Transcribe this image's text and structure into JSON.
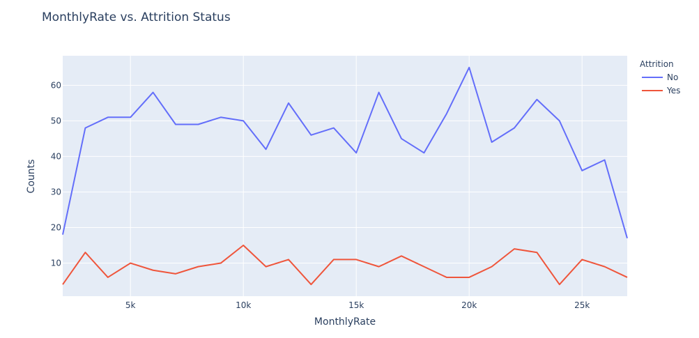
{
  "chart_data": {
    "type": "line",
    "title": "MonthlyRate vs. Attrition Status",
    "xlabel": "MonthlyRate",
    "ylabel": "Counts",
    "xlim": [
      2000,
      27000
    ],
    "ylim": [
      0.7,
      68.3
    ],
    "x_ticks": [
      5000,
      10000,
      15000,
      20000,
      25000
    ],
    "x_tick_labels": [
      "5k",
      "10k",
      "15k",
      "20k",
      "25k"
    ],
    "y_ticks": [
      10,
      20,
      30,
      40,
      50,
      60
    ],
    "y_tick_labels": [
      "10",
      "20",
      "30",
      "40",
      "50",
      "60"
    ],
    "grid": true,
    "legend_title": "Attrition",
    "legend_position": "top-right",
    "x": [
      2000,
      3000,
      4000,
      5000,
      6000,
      7000,
      8000,
      9000,
      10000,
      11000,
      12000,
      13000,
      14000,
      15000,
      16000,
      17000,
      18000,
      19000,
      20000,
      21000,
      22000,
      23000,
      24000,
      25000,
      26000,
      27000
    ],
    "series": [
      {
        "name": "No",
        "color": "#636efa",
        "values": [
          18,
          48,
          51,
          51,
          58,
          49,
          49,
          51,
          50,
          42,
          55,
          46,
          48,
          41,
          58,
          45,
          41,
          52,
          65,
          44,
          48,
          56,
          50,
          36,
          39,
          17
        ]
      },
      {
        "name": "Yes",
        "color": "#ef553b",
        "values": [
          4,
          13,
          6,
          10,
          8,
          7,
          9,
          10,
          15,
          9,
          11,
          4,
          11,
          11,
          9,
          12,
          9,
          6,
          6,
          9,
          14,
          13,
          4,
          11,
          9,
          6
        ]
      }
    ],
    "colors": {
      "plot_bg": "#e5ecf6",
      "grid": "#ffffff",
      "text": "#2a3f5f"
    }
  }
}
